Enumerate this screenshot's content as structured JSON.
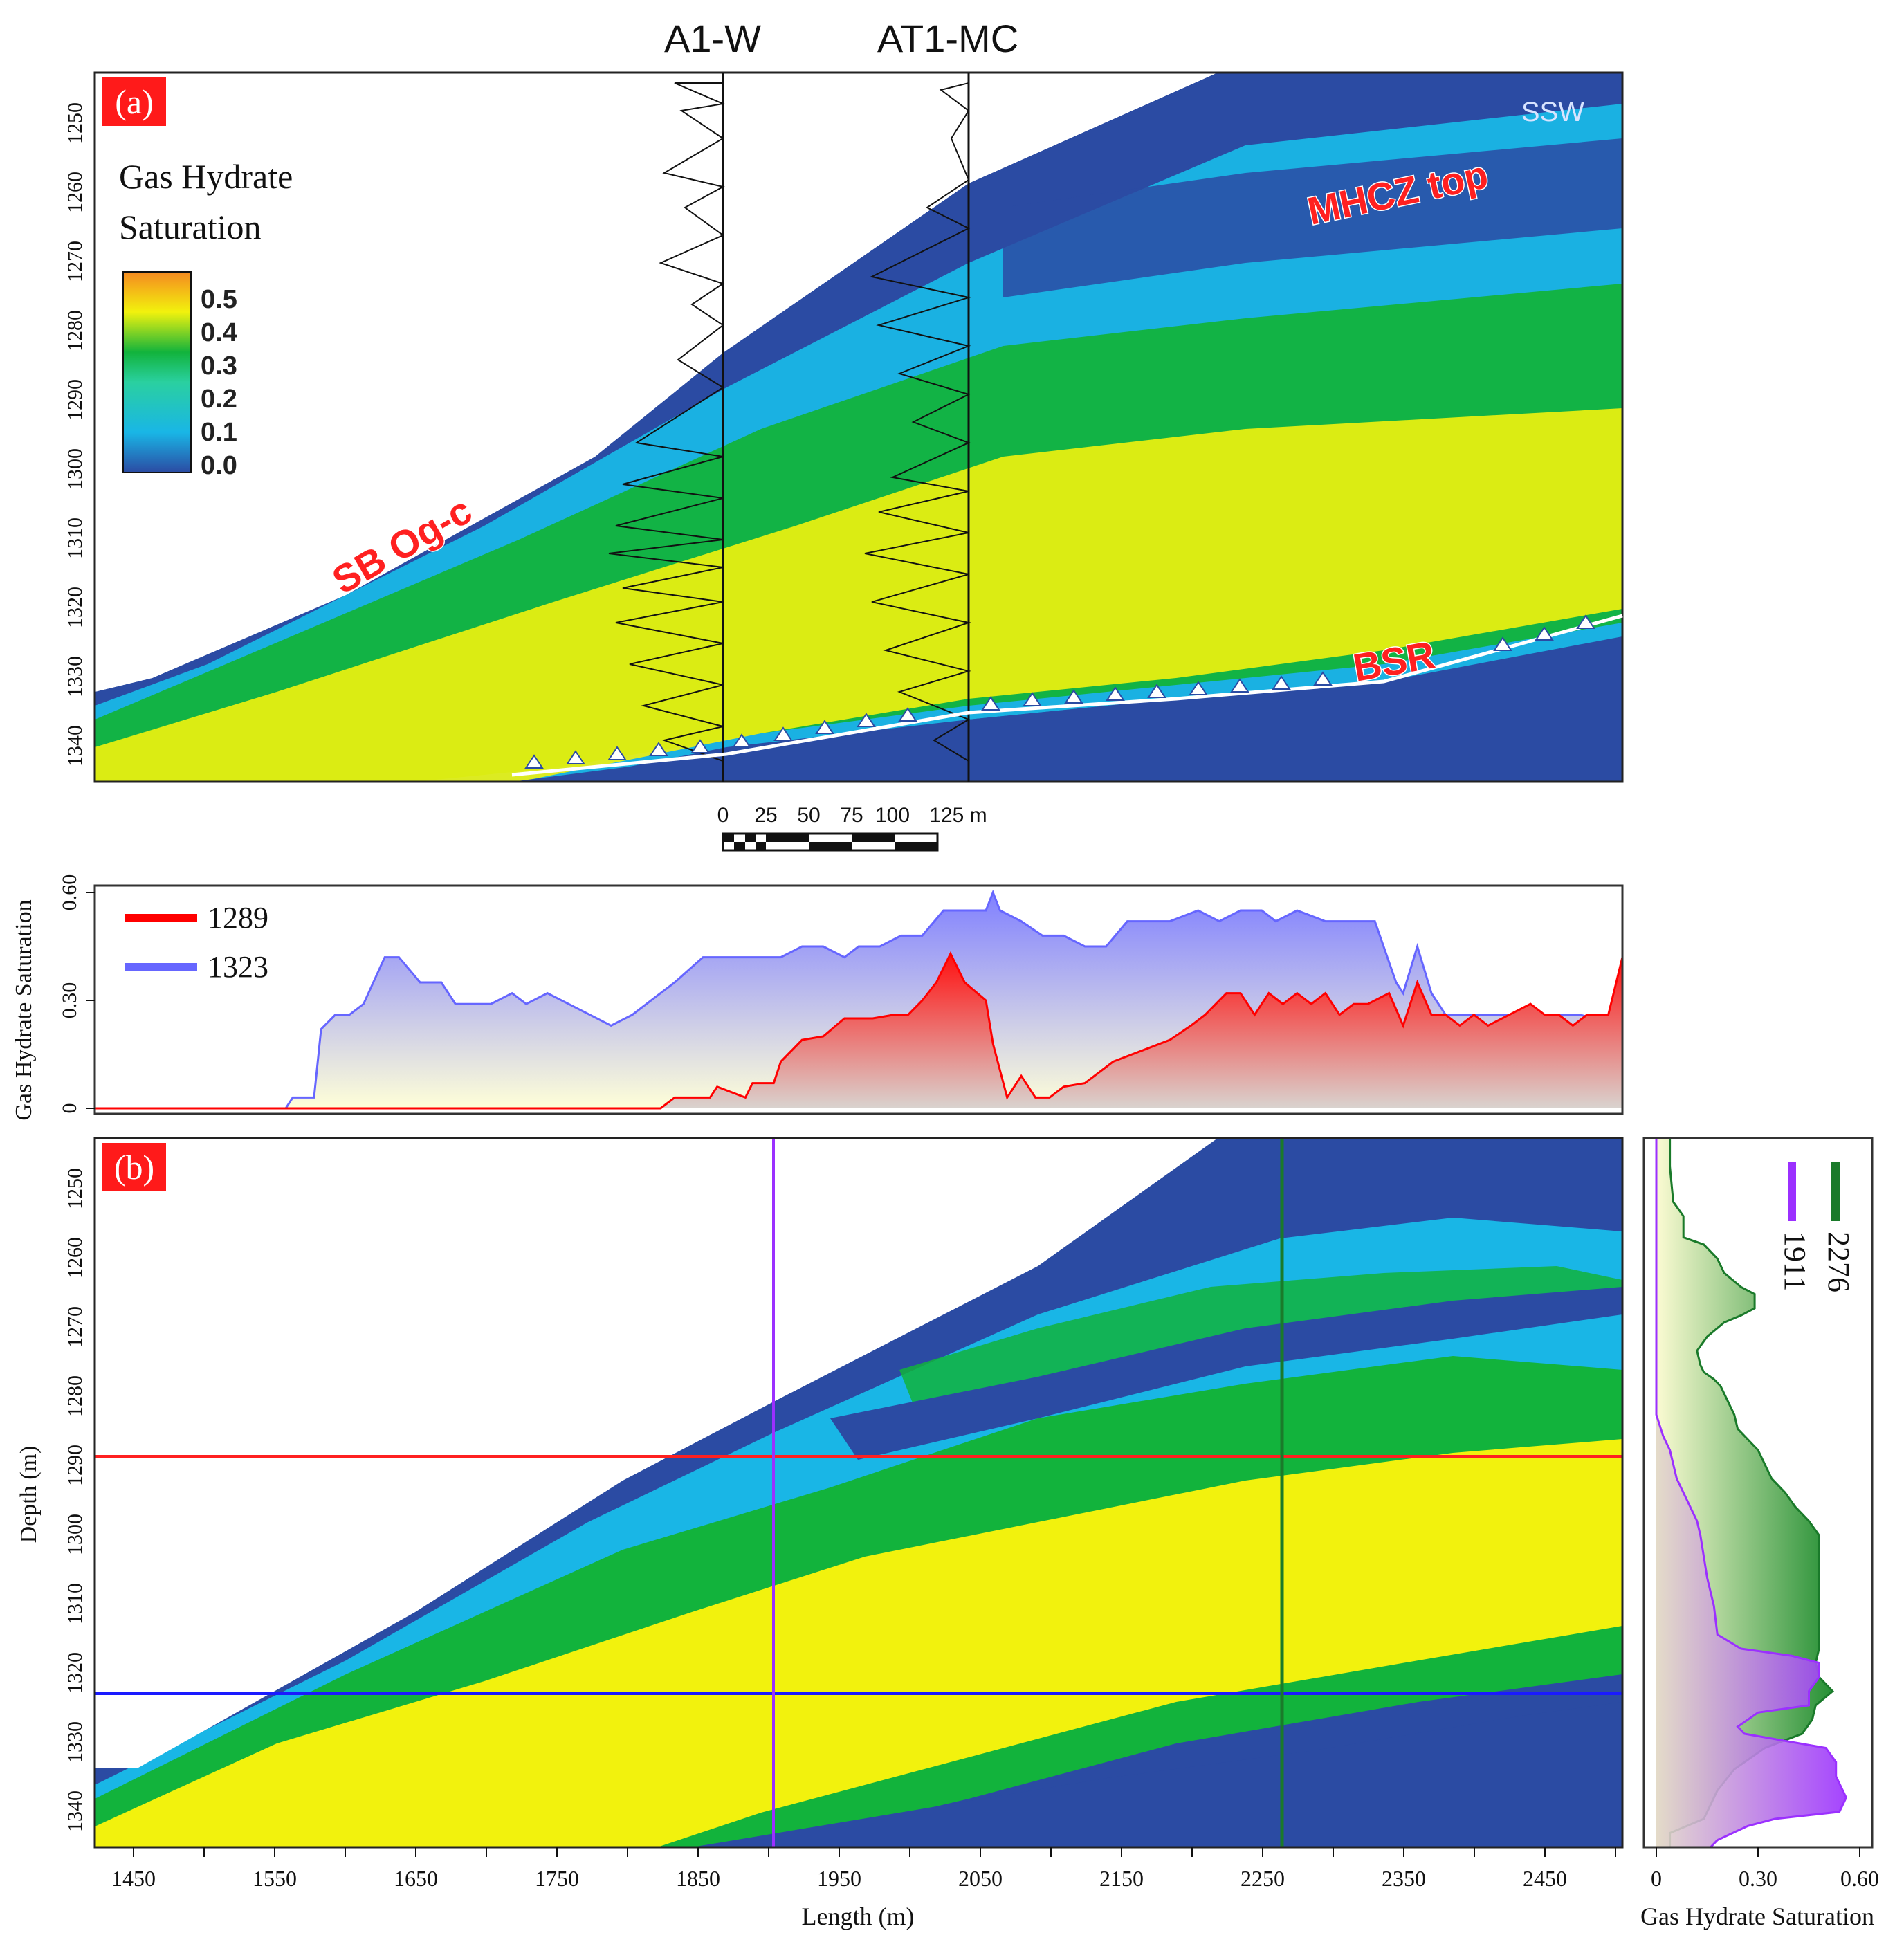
{
  "panel_a": {
    "label": "(a)",
    "well_labels": [
      "A1-W",
      "AT1-MC"
    ],
    "direction": "SSW",
    "colorbar": {
      "title_line1": "Gas Hydrate",
      "title_line2": "Saturation",
      "ticks": [
        "0.5",
        "0.4",
        "0.3",
        "0.2",
        "0.1",
        "0.0"
      ]
    },
    "annotations": [
      "SB Og-c",
      "MHCZ top",
      "BSR"
    ],
    "depth_ticks": [
      "1250",
      "1260",
      "1270",
      "1280",
      "1290",
      "1300",
      "1310",
      "1320",
      "1330",
      "1340"
    ],
    "scale_bar": {
      "ticks": [
        "0",
        "25",
        "50",
        "75",
        "100",
        "125 m"
      ]
    }
  },
  "panel_b": {
    "label": "(b)",
    "xlabel": "Length (m)",
    "ylabel": "Depth (m)",
    "x_ticks": [
      "1450",
      "1550",
      "1650",
      "1750",
      "1850",
      "1950",
      "2050",
      "2150",
      "2250",
      "2350",
      "2450"
    ],
    "y_ticks": [
      "1250",
      "1260",
      "1270",
      "1280",
      "1290",
      "1300",
      "1310",
      "1320",
      "1330",
      "1340"
    ]
  },
  "colors": {
    "blue": "#2b4ba3",
    "cyan": "#19b6e6",
    "green": "#12b33c",
    "yellow": "#f2f20d",
    "orange": "#f5a020",
    "line_1289": "#ff0000",
    "line_1323": "#0000ff",
    "trace_1911": "#9b30ff",
    "trace_2276": "#1a7a2a",
    "label_bg": "#ff1a1a"
  },
  "chart_data": [
    {
      "type": "area",
      "title": "",
      "ylabel": "Gas Hydrate Saturation",
      "y_ticks": [
        "0",
        "0.30",
        "0.60"
      ],
      "ylim": [
        0,
        0.6
      ],
      "xlim": [
        1420,
        2500
      ],
      "legend_placement": "top-left",
      "series": [
        {
          "name": "1289",
          "color": "#ff0000",
          "x": [
            1420,
            1820,
            1830,
            1855,
            1860,
            1880,
            1885,
            1900,
            1905,
            1920,
            1935,
            1950,
            1970,
            1985,
            1995,
            2005,
            2015,
            2025,
            2035,
            2050,
            2055,
            2065,
            2075,
            2085,
            2095,
            2105,
            2120,
            2140,
            2160,
            2180,
            2195,
            2205,
            2220,
            2230,
            2240,
            2250,
            2260,
            2270,
            2280,
            2290,
            2300,
            2310,
            2320,
            2335,
            2345,
            2355,
            2365,
            2375,
            2385,
            2395,
            2405,
            2420,
            2435,
            2445,
            2455,
            2465,
            2475,
            2490,
            2500
          ],
          "values": [
            0,
            0,
            0.03,
            0.03,
            0.06,
            0.03,
            0.07,
            0.07,
            0.13,
            0.19,
            0.2,
            0.25,
            0.25,
            0.26,
            0.26,
            0.3,
            0.35,
            0.43,
            0.35,
            0.3,
            0.18,
            0.03,
            0.09,
            0.03,
            0.03,
            0.06,
            0.07,
            0.13,
            0.16,
            0.19,
            0.23,
            0.26,
            0.32,
            0.32,
            0.26,
            0.32,
            0.29,
            0.32,
            0.29,
            0.32,
            0.26,
            0.29,
            0.29,
            0.32,
            0.23,
            0.35,
            0.26,
            0.26,
            0.23,
            0.26,
            0.23,
            0.26,
            0.29,
            0.26,
            0.26,
            0.23,
            0.26,
            0.26,
            0.42
          ]
        },
        {
          "name": "1323",
          "color": "#6666ff",
          "x": [
            1420,
            1555,
            1560,
            1575,
            1580,
            1590,
            1600,
            1610,
            1625,
            1635,
            1650,
            1665,
            1675,
            1690,
            1700,
            1715,
            1725,
            1740,
            1755,
            1770,
            1785,
            1800,
            1810,
            1830,
            1850,
            1870,
            1890,
            1905,
            1920,
            1935,
            1950,
            1960,
            1975,
            1990,
            2005,
            2020,
            2035,
            2050,
            2055,
            2060,
            2075,
            2090,
            2105,
            2120,
            2135,
            2150,
            2165,
            2180,
            2200,
            2215,
            2230,
            2245,
            2255,
            2270,
            2290,
            2310,
            2325,
            2340,
            2345,
            2355,
            2365,
            2375,
            2390,
            2410,
            2440,
            2470,
            2500
          ],
          "values": [
            0,
            0,
            0.03,
            0.03,
            0.22,
            0.26,
            0.26,
            0.29,
            0.42,
            0.42,
            0.35,
            0.35,
            0.29,
            0.29,
            0.29,
            0.32,
            0.29,
            0.32,
            0.29,
            0.26,
            0.23,
            0.26,
            0.29,
            0.35,
            0.42,
            0.42,
            0.42,
            0.42,
            0.45,
            0.45,
            0.42,
            0.45,
            0.45,
            0.48,
            0.48,
            0.55,
            0.55,
            0.55,
            0.6,
            0.55,
            0.52,
            0.48,
            0.48,
            0.45,
            0.45,
            0.52,
            0.52,
            0.52,
            0.55,
            0.52,
            0.55,
            0.55,
            0.52,
            0.55,
            0.52,
            0.52,
            0.52,
            0.35,
            0.32,
            0.45,
            0.32,
            0.26,
            0.26,
            0.26,
            0.26,
            0.26,
            0.23
          ]
        }
      ]
    },
    {
      "type": "area",
      "title": "",
      "xlabel": "Gas Hydrate Saturation",
      "x_ticks": [
        "0",
        "0.30",
        "0.60"
      ],
      "xlim": [
        0,
        0.6
      ],
      "ylim": [
        1246,
        1346
      ],
      "legend_placement": "top-right",
      "series": [
        {
          "name": "1911",
          "color": "#9b30ff",
          "depth": [
            1246,
            1282,
            1285,
            1288,
            1290,
            1292,
            1294,
            1296,
            1298,
            1300,
            1302,
            1305,
            1308,
            1312,
            1316,
            1318,
            1319,
            1320,
            1322,
            1324,
            1326,
            1327,
            1329,
            1330,
            1331,
            1332,
            1334,
            1336,
            1338,
            1339,
            1341,
            1342,
            1343,
            1345,
            1346
          ],
          "values": [
            0,
            0,
            0.0,
            0.02,
            0.04,
            0.05,
            0.06,
            0.08,
            0.1,
            0.12,
            0.13,
            0.14,
            0.15,
            0.17,
            0.18,
            0.25,
            0.4,
            0.48,
            0.48,
            0.45,
            0.45,
            0.3,
            0.24,
            0.26,
            0.38,
            0.5,
            0.53,
            0.53,
            0.55,
            0.56,
            0.54,
            0.35,
            0.27,
            0.18,
            0.16
          ]
        },
        {
          "name": "2276",
          "color": "#1a7a2a",
          "depth": [
            1246,
            1250,
            1255,
            1257,
            1260,
            1261,
            1262,
            1263,
            1264,
            1265,
            1267,
            1268,
            1270,
            1271,
            1272,
            1274,
            1276,
            1278,
            1279,
            1280,
            1281,
            1283,
            1285,
            1287,
            1288,
            1290,
            1292,
            1294,
            1296,
            1298,
            1300,
            1302,
            1304,
            1307,
            1310,
            1314,
            1318,
            1320,
            1322,
            1324,
            1326,
            1328,
            1330,
            1332,
            1335,
            1338,
            1340,
            1342,
            1344,
            1346
          ],
          "values": [
            0.04,
            0.04,
            0.05,
            0.08,
            0.08,
            0.14,
            0.16,
            0.18,
            0.19,
            0.2,
            0.25,
            0.29,
            0.29,
            0.25,
            0.2,
            0.15,
            0.12,
            0.13,
            0.14,
            0.17,
            0.19,
            0.21,
            0.23,
            0.24,
            0.26,
            0.3,
            0.32,
            0.34,
            0.38,
            0.41,
            0.45,
            0.48,
            0.48,
            0.48,
            0.48,
            0.48,
            0.48,
            0.47,
            0.48,
            0.52,
            0.47,
            0.46,
            0.43,
            0.32,
            0.23,
            0.18,
            0.16,
            0.14,
            0.04,
            0.04
          ]
        }
      ]
    }
  ]
}
